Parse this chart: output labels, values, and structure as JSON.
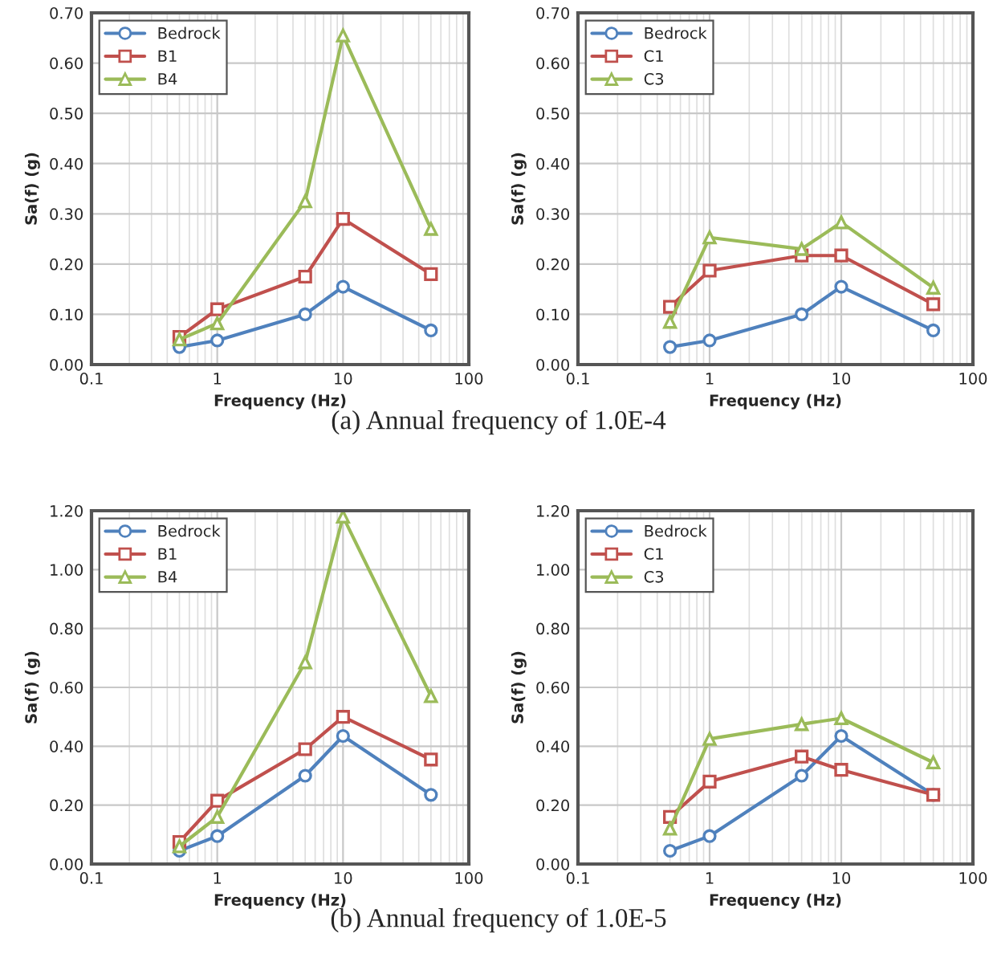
{
  "chart_data": [
    {
      "type": "line",
      "xlabel": "Frequency (Hz)",
      "ylabel": "Sa(f) (g)",
      "log": "x",
      "grid": true,
      "legend": "top left",
      "xlim": [
        0.1,
        100
      ],
      "xticks": [
        0.1,
        1,
        10,
        100
      ],
      "ylim": [
        0,
        0.7
      ],
      "yticks": [
        {
          "value": 0,
          "label": "0.00"
        },
        {
          "value": 0.1,
          "label": "0.10"
        },
        {
          "value": 0.2,
          "label": "0.20"
        },
        {
          "value": 0.3,
          "label": "0.30"
        },
        {
          "value": 0.4,
          "label": "0.40"
        },
        {
          "value": 0.5,
          "label": "0.50"
        },
        {
          "value": 0.6,
          "label": "0.60"
        },
        {
          "value": 0.7,
          "label": "0.70"
        }
      ],
      "x": [
        0.5,
        1,
        5,
        10,
        50
      ],
      "series": [
        {
          "name": "Bedrock",
          "color": "#4f81bd",
          "marker": "circle",
          "values": [
            0.035,
            0.048,
            0.1,
            0.155,
            0.068
          ]
        },
        {
          "name": "B1",
          "color": "#c0504d",
          "marker": "square",
          "values": [
            0.055,
            0.11,
            0.175,
            0.29,
            0.18
          ]
        },
        {
          "name": "B4",
          "color": "#9bbb59",
          "marker": "triangle",
          "values": [
            0.05,
            0.082,
            0.325,
            0.655,
            0.27
          ]
        }
      ],
      "annotations": [
        "(a) Annual frequency of 1.0E-4"
      ]
    },
    {
      "type": "line",
      "xlabel": "Frequency (Hz)",
      "ylabel": "Sa(f) (g)",
      "log": "x",
      "grid": true,
      "legend": "top left",
      "xlim": [
        0.1,
        100
      ],
      "xticks": [
        0.1,
        1,
        10,
        100
      ],
      "ylim": [
        0,
        0.7
      ],
      "yticks": [
        {
          "value": 0,
          "label": "0.00"
        },
        {
          "value": 0.1,
          "label": "0.10"
        },
        {
          "value": 0.2,
          "label": "0.20"
        },
        {
          "value": 0.3,
          "label": "0.30"
        },
        {
          "value": 0.4,
          "label": "0.40"
        },
        {
          "value": 0.5,
          "label": "0.50"
        },
        {
          "value": 0.6,
          "label": "0.60"
        },
        {
          "value": 0.7,
          "label": "0.70"
        }
      ],
      "x": [
        0.5,
        1,
        5,
        10,
        50
      ],
      "series": [
        {
          "name": "Bedrock",
          "color": "#4f81bd",
          "marker": "circle",
          "values": [
            0.035,
            0.048,
            0.1,
            0.155,
            0.068
          ]
        },
        {
          "name": "C1",
          "color": "#c0504d",
          "marker": "square",
          "values": [
            0.115,
            0.187,
            0.217,
            0.217,
            0.12
          ]
        },
        {
          "name": "C3",
          "color": "#9bbb59",
          "marker": "triangle",
          "values": [
            0.085,
            0.253,
            0.23,
            0.283,
            0.153
          ]
        }
      ]
    },
    {
      "type": "line",
      "xlabel": "Frequency (Hz)",
      "ylabel": "Sa(f) (g)",
      "log": "x",
      "grid": true,
      "legend": "top left",
      "xlim": [
        0.1,
        100
      ],
      "xticks": [
        0.1,
        1,
        10,
        100
      ],
      "ylim": [
        0,
        1.2
      ],
      "yticks": [
        {
          "value": 0,
          "label": "0.00"
        },
        {
          "value": 0.2,
          "label": "0.20"
        },
        {
          "value": 0.4,
          "label": "0.40"
        },
        {
          "value": 0.6,
          "label": "0.60"
        },
        {
          "value": 0.8,
          "label": "0.80"
        },
        {
          "value": 1.0,
          "label": "1.00"
        },
        {
          "value": 1.2,
          "label": "1.20"
        }
      ],
      "x": [
        0.5,
        1,
        5,
        10,
        50
      ],
      "series": [
        {
          "name": "Bedrock",
          "color": "#4f81bd",
          "marker": "circle",
          "values": [
            0.045,
            0.095,
            0.3,
            0.435,
            0.235
          ]
        },
        {
          "name": "B1",
          "color": "#c0504d",
          "marker": "square",
          "values": [
            0.075,
            0.215,
            0.39,
            0.5,
            0.355
          ]
        },
        {
          "name": "B4",
          "color": "#9bbb59",
          "marker": "triangle",
          "values": [
            0.06,
            0.16,
            0.685,
            1.18,
            0.57
          ]
        }
      ],
      "annotations": [
        "(b) Annual frequency of 1.0E-5"
      ]
    },
    {
      "type": "line",
      "xlabel": "Frequency (Hz)",
      "ylabel": "Sa(f) (g)",
      "log": "x",
      "grid": true,
      "legend": "top left",
      "xlim": [
        0.1,
        100
      ],
      "xticks": [
        0.1,
        1,
        10,
        100
      ],
      "ylim": [
        0,
        1.2
      ],
      "yticks": [
        {
          "value": 0,
          "label": "0.00"
        },
        {
          "value": 0.2,
          "label": "0.20"
        },
        {
          "value": 0.4,
          "label": "0.40"
        },
        {
          "value": 0.6,
          "label": "0.60"
        },
        {
          "value": 0.8,
          "label": "0.80"
        },
        {
          "value": 1.0,
          "label": "1.00"
        },
        {
          "value": 1.2,
          "label": "1.20"
        }
      ],
      "x": [
        0.5,
        1,
        5,
        10,
        50
      ],
      "series": [
        {
          "name": "Bedrock",
          "color": "#4f81bd",
          "marker": "circle",
          "values": [
            0.045,
            0.095,
            0.3,
            0.435,
            0.235
          ]
        },
        {
          "name": "C1",
          "color": "#c0504d",
          "marker": "square",
          "values": [
            0.16,
            0.28,
            0.365,
            0.32,
            0.235
          ]
        },
        {
          "name": "C3",
          "color": "#9bbb59",
          "marker": "triangle",
          "values": [
            0.12,
            0.425,
            0.475,
            0.495,
            0.345
          ]
        }
      ]
    }
  ]
}
